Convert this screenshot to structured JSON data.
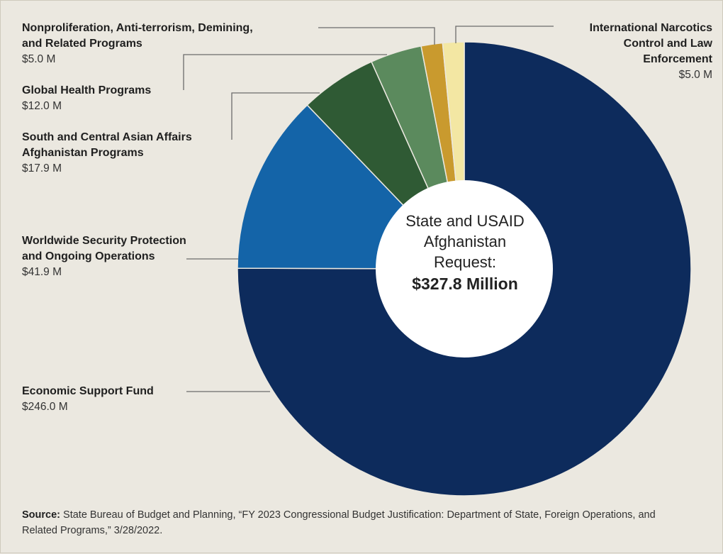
{
  "chart_data": {
    "type": "pie",
    "title": "",
    "center_label": {
      "lines": [
        "State and USAID",
        "Afghanistan",
        "Request:"
      ],
      "total": "$327.8 Million"
    },
    "slices": [
      {
        "label": "Economic Support Fund",
        "value": 246.0,
        "value_label": "$246.0 M",
        "color": "#0d2b5c"
      },
      {
        "label": "Worldwide Security Protection\nand Ongoing Operations",
        "value": 41.9,
        "value_label": "$41.9 M",
        "color": "#1464a8"
      },
      {
        "label": "South and Central Asian Affairs\nAfghanistan Programs",
        "value": 17.9,
        "value_label": "$17.9 M",
        "color": "#2f5a34"
      },
      {
        "label": "Global Health Programs",
        "value": 12.0,
        "value_label": "$12.0 M",
        "color": "#5b8a5d"
      },
      {
        "label": "Nonproliferation, Anti-terrorism, Demining,\nand Related Programs",
        "value": 5.0,
        "value_label": "$5.0 M",
        "color": "#c99a2e"
      },
      {
        "label": "International Narcotics\nControl and Law\nEnforcement",
        "value": 5.0,
        "value_label": "$5.0 M",
        "color": "#f3e7a3"
      }
    ]
  },
  "source": {
    "prefix": "Source:",
    "text": "State Bureau of Budget and Planning, “FY 2023 Congressional Budget Justification: Department of State, Foreign Operations, and Related Programs,” 3/28/2022."
  }
}
